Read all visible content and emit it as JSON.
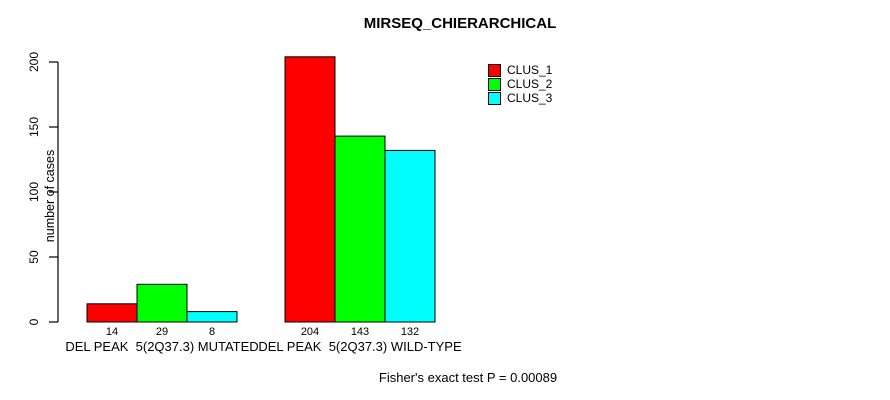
{
  "chart_data": {
    "type": "bar",
    "title": "MIRSEQ_CHIERARCHICAL",
    "ylabel": "number of cases",
    "xlabel": "",
    "ylim": [
      0,
      200
    ],
    "yticks": [
      0,
      50,
      100,
      150,
      200
    ],
    "categories": [
      "DEL PEAK  5(2Q37.3) MUTATED",
      "DEL PEAK  5(2Q37.3) WILD-TYPE"
    ],
    "series": [
      {
        "name": "CLUS_1",
        "color": "#FF0000",
        "values": [
          14,
          204
        ]
      },
      {
        "name": "CLUS_2",
        "color": "#00FF00",
        "values": [
          29,
          143
        ]
      },
      {
        "name": "CLUS_3",
        "color": "#00FFFF",
        "values": [
          8,
          132
        ]
      }
    ],
    "bar_value_labels": [
      [
        14,
        29,
        8
      ],
      [
        204,
        143,
        132
      ]
    ],
    "annotation": "Fisher's exact test P = 0.00089",
    "legend_position": "top-right",
    "grid": false,
    "background_color": "#FFFFFF",
    "bar_border_color": "#000000",
    "axis_color": "#000000"
  }
}
